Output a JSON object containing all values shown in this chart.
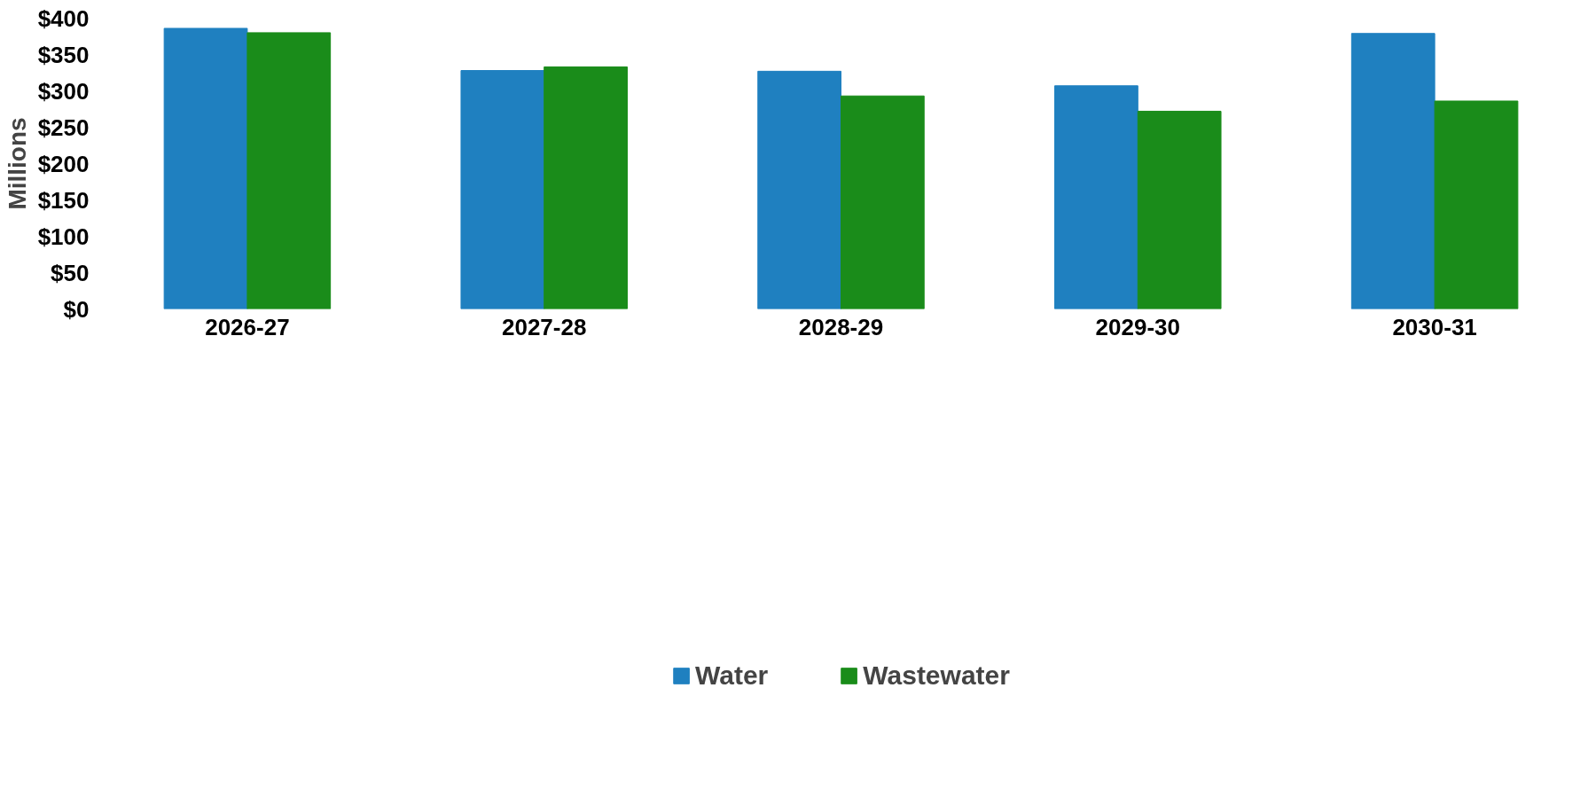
{
  "chart_data": {
    "type": "bar",
    "ylabel": "Millions",
    "categories": [
      "2026-27",
      "2027-28",
      "2028-29",
      "2029-30",
      "2030-31"
    ],
    "series": [
      {
        "name": "Water",
        "color": "#1f80c0",
        "values": [
          386,
          328,
          327,
          307,
          379
        ]
      },
      {
        "name": "Wastewater",
        "color": "#1a8c1a",
        "values": [
          380,
          333,
          293,
          272,
          286
        ]
      }
    ],
    "ylim": [
      0,
      400
    ],
    "yticks": [
      {
        "value": 0,
        "label": "$0"
      },
      {
        "value": 50,
        "label": "$50"
      },
      {
        "value": 100,
        "label": "$100"
      },
      {
        "value": 150,
        "label": "$150"
      },
      {
        "value": 200,
        "label": "$200"
      },
      {
        "value": 250,
        "label": "$250"
      },
      {
        "value": 300,
        "label": "$300"
      },
      {
        "value": 350,
        "label": "$350"
      },
      {
        "value": 400,
        "label": "$400"
      }
    ],
    "legend": "bottom"
  }
}
